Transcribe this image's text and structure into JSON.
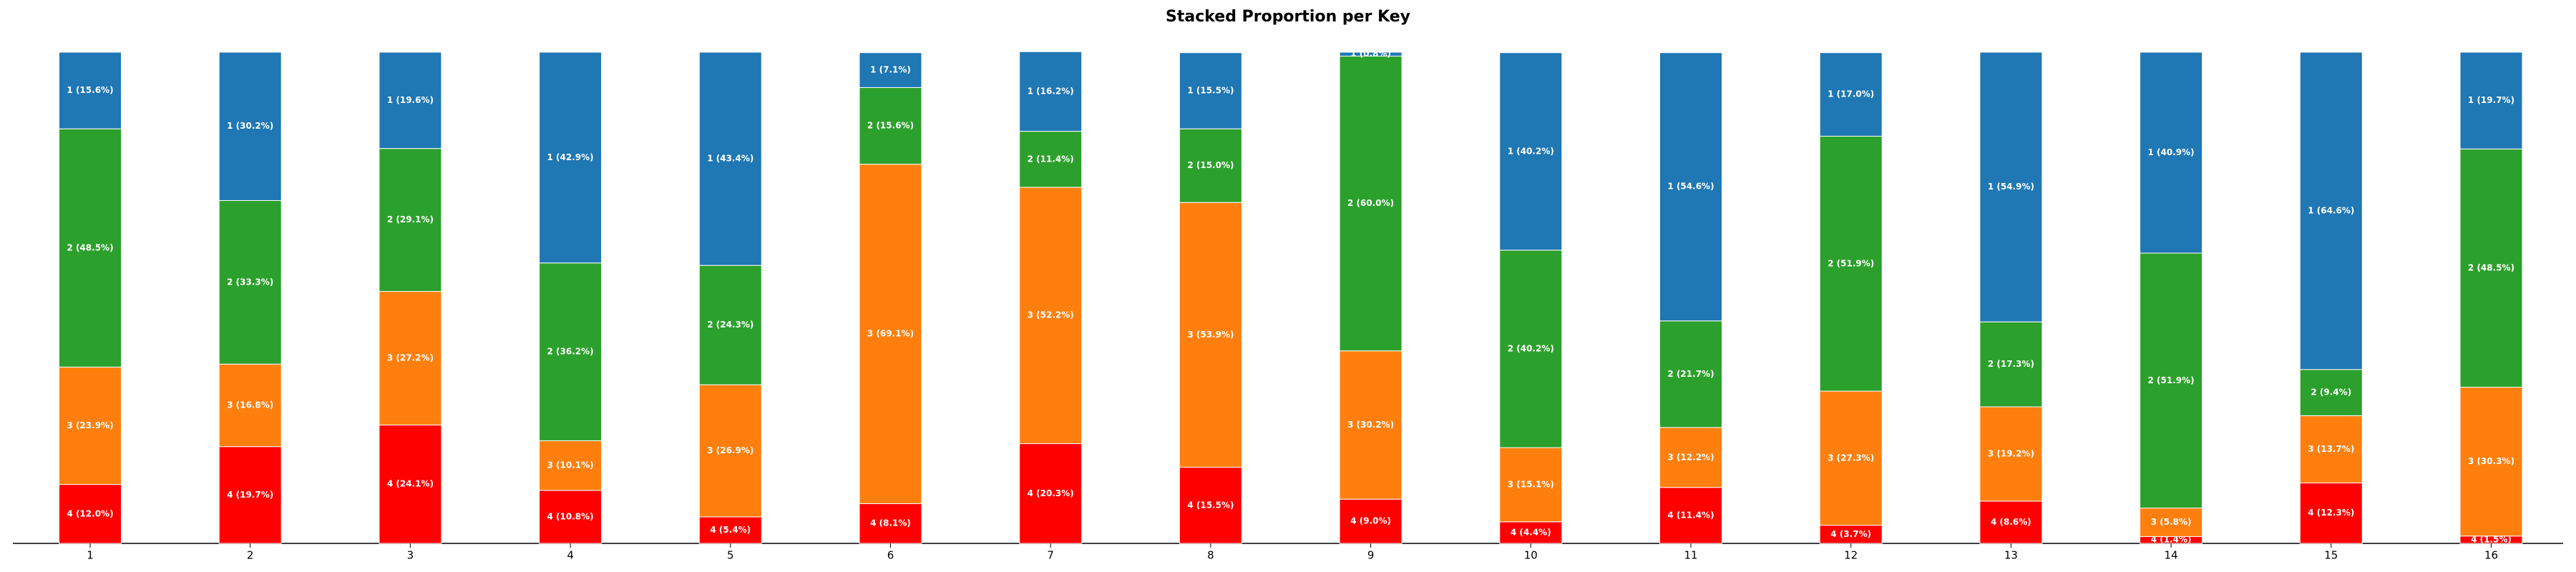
{
  "chart_data": {
    "type": "stacked_bar",
    "title": "Stacked Proportion per Key",
    "categories": [
      "1",
      "2",
      "3",
      "4",
      "5",
      "6",
      "7",
      "8",
      "9",
      "10",
      "11",
      "12",
      "13",
      "14",
      "15",
      "16"
    ],
    "ylim": [
      0,
      100
    ],
    "series": [
      {
        "name": "4",
        "color": "#ff0000",
        "values": [
          12.0,
          19.7,
          24.1,
          10.8,
          5.4,
          8.1,
          20.3,
          15.5,
          9.0,
          4.4,
          11.4,
          3.7,
          8.6,
          1.4,
          12.3,
          1.5
        ],
        "value_labels": [
          "4 (12.0%)",
          "4 (19.7%)",
          "4 (24.1%)",
          "4 (10.8%)",
          "4 (5.4%)",
          "4 (8.1%)",
          "4 (20.3%)",
          "4 (15.5%)",
          "4 (9.0%)",
          "4 (4.4%)",
          "4 (11.4%)",
          "4 (3.7%)",
          "4 (8.6%)",
          "4 (1.4%)",
          "4 (12.3%)",
          "4 (1.5%)"
        ]
      },
      {
        "name": "3",
        "color": "#ff7f0e",
        "values": [
          23.9,
          16.8,
          27.2,
          10.1,
          26.9,
          69.1,
          52.2,
          53.9,
          30.2,
          15.1,
          12.2,
          27.3,
          19.2,
          5.8,
          13.7,
          30.3
        ],
        "value_labels": [
          "3 (23.9%)",
          "3 (16.8%)",
          "3 (27.2%)",
          "3 (10.1%)",
          "3 (26.9%)",
          "3 (69.1%)",
          "3 (52.2%)",
          "3 (53.9%)",
          "3 (30.2%)",
          "3 (15.1%)",
          "3 (12.2%)",
          "3 (27.3%)",
          "3 (19.2%)",
          "3 (5.8%)",
          "3 (13.7%)",
          "3 (30.3%)"
        ]
      },
      {
        "name": "2",
        "color": "#2ca02c",
        "values": [
          48.5,
          33.3,
          29.1,
          36.2,
          24.3,
          15.6,
          11.4,
          15.0,
          60.0,
          40.2,
          21.7,
          51.9,
          17.3,
          51.9,
          9.4,
          48.5
        ],
        "value_labels": [
          "2 (48.5%)",
          "2 (33.3%)",
          "2 (29.1%)",
          "2 (36.2%)",
          "2 (24.3%)",
          "2 (15.6%)",
          "2 (11.4%)",
          "2 (15.0%)",
          "2 (60.0%)",
          "2 (40.2%)",
          "2 (21.7%)",
          "2 (51.9%)",
          "2 (17.3%)",
          "2 (51.9%)",
          "2 (9.4%)",
          "2 (48.5%)"
        ]
      },
      {
        "name": "1",
        "color": "#1f77b4",
        "values": [
          15.6,
          30.2,
          19.6,
          42.9,
          43.4,
          7.1,
          16.2,
          15.5,
          0.8,
          40.2,
          54.6,
          17.0,
          54.9,
          40.9,
          64.6,
          19.7
        ],
        "value_labels": [
          "1 (15.6%)",
          "1 (30.2%)",
          "1 (19.6%)",
          "1 (42.9%)",
          "1 (43.4%)",
          "1 (7.1%)",
          "1 (16.2%)",
          "1 (15.5%)",
          "1 (0.8%)",
          "1 (40.2%)",
          "1 (54.6%)",
          "1 (17.0%)",
          "1 (54.9%)",
          "1 (40.9%)",
          "1 (64.6%)",
          "1 (19.7%)"
        ]
      }
    ]
  }
}
